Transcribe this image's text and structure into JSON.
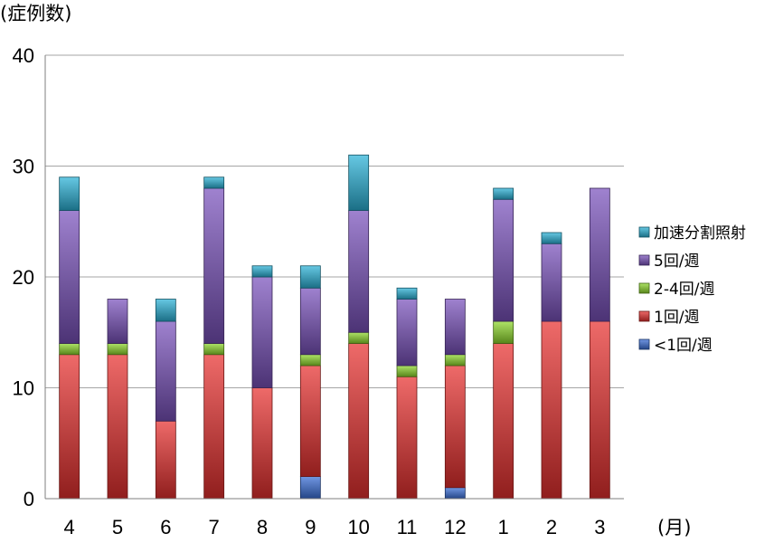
{
  "chart_data": {
    "type": "bar",
    "stacked": true,
    "ylabel": "(症例数)",
    "xlabel": "(月)",
    "ylim": [
      0,
      40
    ],
    "yticks": [
      0,
      10,
      20,
      30,
      40
    ],
    "grid": true,
    "legend_position": "right",
    "categories": [
      "4",
      "5",
      "6",
      "7",
      "8",
      "9",
      "10",
      "11",
      "12",
      "1",
      "2",
      "3"
    ],
    "series": [
      {
        "name": "<1回/週",
        "color": "#3a6fd8",
        "values": [
          0,
          0,
          0,
          0,
          0,
          2,
          0,
          0,
          1,
          0,
          0,
          0
        ]
      },
      {
        "name": "1回/週",
        "color": "#e8302f",
        "values": [
          13,
          13,
          7,
          13,
          10,
          10,
          14,
          11,
          11,
          14,
          16,
          16
        ]
      },
      {
        "name": "2-4回/週",
        "color": "#8ed82c",
        "values": [
          1,
          1,
          0,
          1,
          0,
          1,
          1,
          1,
          1,
          2,
          0,
          0
        ]
      },
      {
        "name": "5回/週",
        "color": "#7a52bd",
        "values": [
          12,
          4,
          9,
          14,
          10,
          6,
          11,
          6,
          5,
          11,
          7,
          12
        ]
      },
      {
        "name": "加速分割照射",
        "color": "#2bb3d8",
        "values": [
          3,
          0,
          2,
          1,
          1,
          2,
          5,
          1,
          0,
          1,
          1,
          0
        ]
      }
    ],
    "legend_order": [
      "加速分割照射",
      "5回/週",
      "2-4回/週",
      "1回/週",
      "<1回/週"
    ]
  }
}
